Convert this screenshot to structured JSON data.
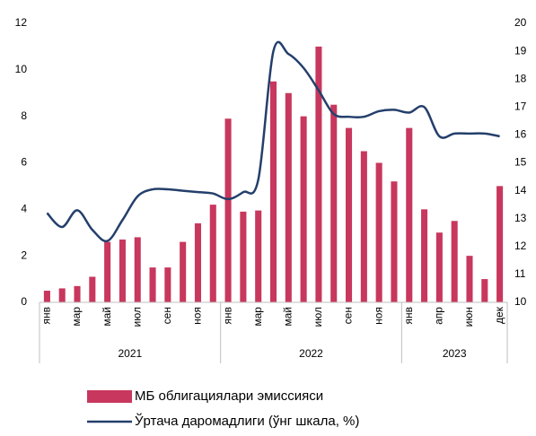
{
  "chart_data": {
    "type": "bar_line",
    "groups": [
      {
        "label": "2021",
        "categories": [
          "янв",
          null,
          "мар",
          null,
          "май",
          null,
          "июл",
          null,
          "сен",
          null,
          "ноя",
          null
        ]
      },
      {
        "label": "2022",
        "categories": [
          "янв",
          null,
          "мар",
          null,
          "май",
          null,
          "июл",
          null,
          "сен",
          null,
          "ноя",
          null
        ]
      },
      {
        "label": "2023",
        "categories": [
          "янв",
          null,
          "апр",
          null,
          "июн",
          null,
          "дек"
        ]
      }
    ],
    "series": [
      {
        "name": "МБ облигациялари эмиссияси",
        "type": "bar",
        "color": "#c8375d",
        "axis": "y",
        "values": [
          0.5,
          0.6,
          0.7,
          1.1,
          2.6,
          2.7,
          2.8,
          1.5,
          1.5,
          2.6,
          3.4,
          4.2,
          7.9,
          3.9,
          3.95,
          9.5,
          9.0,
          8.0,
          11.0,
          8.5,
          7.5,
          6.5,
          6.0,
          5.2,
          7.5,
          4.0,
          3.0,
          3.5,
          2.0,
          1.0,
          5.0
        ]
      },
      {
        "name": "Ўртача даромадлиги (ўнг шкала, %)",
        "type": "line",
        "color": "#243f6b",
        "axis": "y2",
        "values": [
          13.2,
          12.7,
          13.3,
          12.6,
          12.2,
          12.95,
          13.8,
          14.05,
          14.05,
          14.0,
          13.95,
          13.9,
          13.7,
          13.95,
          14.4,
          19.0,
          18.9,
          18.4,
          17.6,
          16.75,
          16.65,
          16.65,
          16.85,
          16.9,
          16.8,
          17.0,
          15.95,
          16.05,
          16.05,
          16.05,
          15.95
        ]
      }
    ],
    "ylim": [
      0,
      12
    ],
    "yticks": [
      0,
      2,
      4,
      6,
      8,
      10,
      12
    ],
    "y2lim": [
      10,
      20
    ],
    "y2ticks": [
      10,
      11,
      12,
      13,
      14,
      15,
      16,
      17,
      18,
      19,
      20
    ],
    "legend": "bottom"
  }
}
